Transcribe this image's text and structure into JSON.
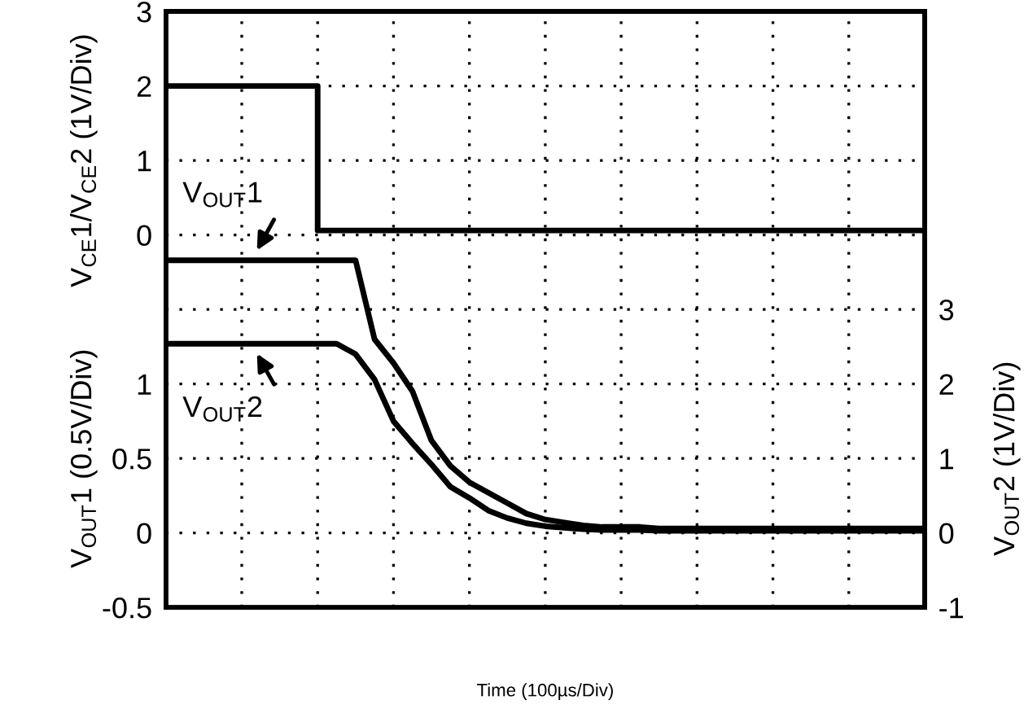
{
  "chart_data": {
    "type": "line",
    "xlabel": "Time (100µs/Div)",
    "ylabel": "V$_{OUT}$1 (0.5V/Div)",
    "y2label": "V$_{OUT}$2 (1V/Div)",
    "y3label": "V$_{CE}$1/V$_{CE}$2 (1V/Div)",
    "categories": [
      null,
      null,
      null,
      null,
      null,
      null,
      null,
      null,
      null,
      null,
      null,
      null,
      null,
      null,
      null,
      null,
      null,
      null,
      null,
      null,
      null,
      null,
      null,
      null,
      null,
      null,
      null,
      null,
      null,
      null,
      null,
      null,
      null,
      null,
      null,
      null,
      null,
      null,
      null,
      null,
      null
    ],
    "ylim": [
      -0.5,
      3.5
    ],
    "yticks": [
      -0.5,
      0,
      0.5,
      1
    ],
    "y2lim": [
      -1,
      7
    ],
    "y2ticks": [
      -1,
      0,
      1,
      2,
      3
    ],
    "y3lim": [
      -5,
      3
    ],
    "y3ticks": [
      0,
      1,
      2,
      3
    ],
    "grid": true,
    "line_style": "solid",
    "marker": "none",
    "series": [
      {
        "type": "step",
        "axis": "y3",
        "color": "#000000",
        "values": [
          2,
          2,
          2,
          2,
          2,
          2,
          2,
          2,
          0.06,
          0.06,
          0.06,
          0.06,
          0.06,
          0.06,
          0.06,
          0.06,
          0.06,
          0.06,
          0.06,
          0.06,
          0.06,
          0.06,
          0.06,
          0.06,
          0.06,
          0.06,
          0.06,
          0.06,
          0.06,
          0.06,
          0.06,
          0.06,
          0.06,
          0.06,
          0.06,
          0.06,
          0.06,
          0.06,
          0.06,
          0.06,
          0.06
        ]
      },
      {
        "name": "V$_{OUT}$1",
        "axis": "y",
        "color": "#000000",
        "values": [
          1.83,
          1.83,
          1.83,
          1.83,
          1.83,
          1.83,
          1.83,
          1.83,
          1.83,
          1.83,
          1.83,
          1.3,
          1.14,
          0.95,
          0.62,
          0.45,
          0.34,
          0.27,
          0.2,
          0.13,
          0.09,
          0.07,
          0.05,
          0.04,
          0.04,
          0.04,
          0.03,
          0.03,
          0.03,
          0.03,
          0.03,
          0.03,
          0.03,
          0.03,
          0.03,
          0.03,
          0.03,
          0.03,
          0.03,
          0.03,
          0.03
        ]
      },
      {
        "name": "V$_{OUT}$2",
        "axis": "y2",
        "color": "#000000",
        "values": [
          2.54,
          2.54,
          2.54,
          2.54,
          2.54,
          2.54,
          2.54,
          2.54,
          2.54,
          2.54,
          2.4,
          2.06,
          1.5,
          1.2,
          0.92,
          0.62,
          0.47,
          0.3,
          0.2,
          0.13,
          0.09,
          0.07,
          0.05,
          0.04,
          0.04,
          0.04,
          0.03,
          0.03,
          0.03,
          0.03,
          0.03,
          0.03,
          0.03,
          0.03,
          0.03,
          0.03,
          0.03,
          0.03,
          0.03,
          0.03,
          0.03
        ]
      }
    ]
  }
}
